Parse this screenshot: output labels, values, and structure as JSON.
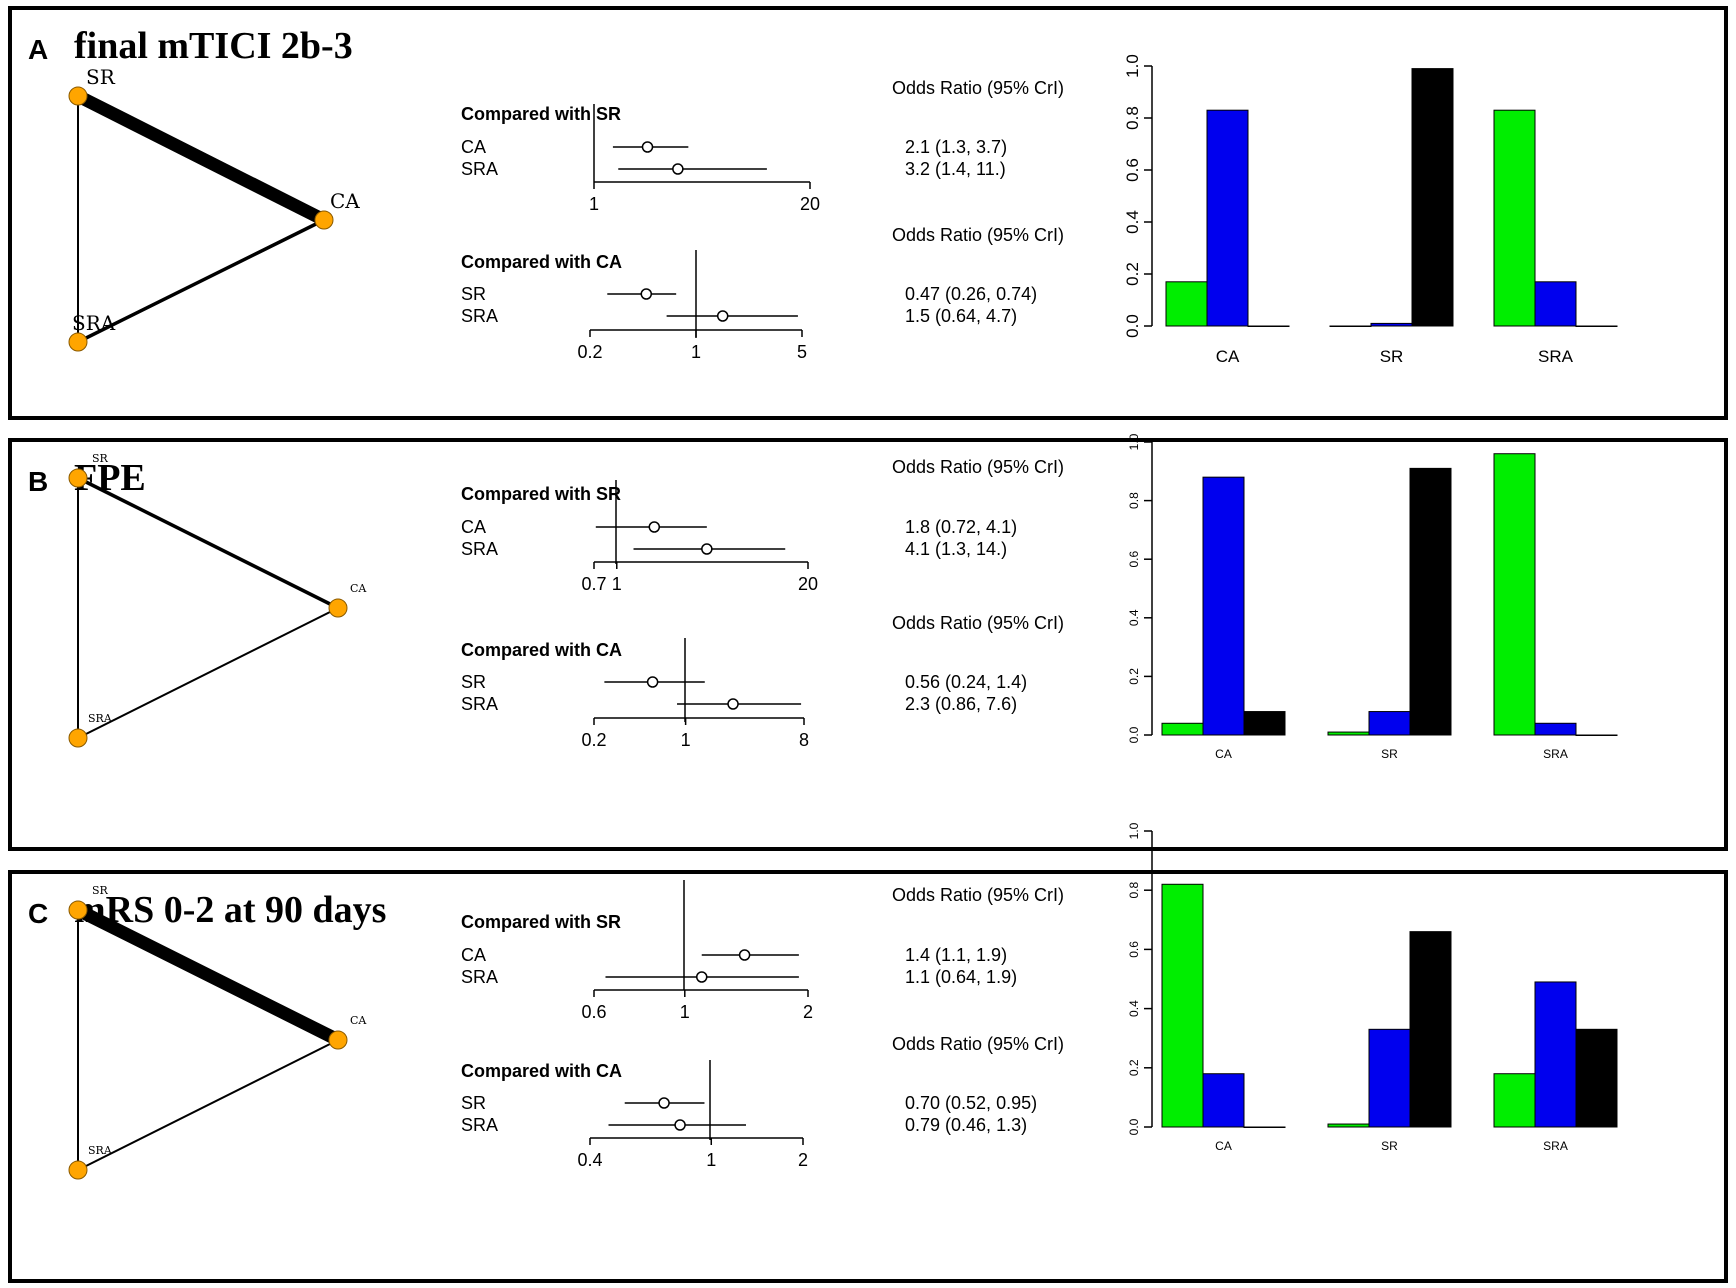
{
  "colors": {
    "green": "#00ee00",
    "blue": "#0000ee",
    "black": "#000000",
    "node": "#ffa500",
    "frame": "#000000"
  },
  "panels": [
    {
      "label": "A",
      "title": "final mTICI 2b-3",
      "network": {
        "nodes": [
          "SR",
          "CA",
          "SRA"
        ],
        "edges": [
          {
            "from": "SR",
            "to": "CA",
            "weight": "thick"
          },
          {
            "from": "SR",
            "to": "SRA",
            "weight": "thin"
          },
          {
            "from": "CA",
            "to": "SRA",
            "weight": "medium"
          }
        ]
      },
      "forest": [
        {
          "header": "Compared with SR",
          "or_label": "Odds Ratio (95% CrI)",
          "ticks": [
            "1",
            "20"
          ],
          "rows": [
            {
              "name": "CA",
              "est": 2.1,
              "lo": 1.3,
              "hi": 3.7,
              "text": "2.1 (1.3, 3.7)"
            },
            {
              "name": "SRA",
              "est": 3.2,
              "lo": 1.4,
              "hi": 11,
              "text": "3.2 (1.4, 11.)"
            }
          ]
        },
        {
          "header": "Compared with CA",
          "or_label": "Odds Ratio (95% CrI)",
          "ticks": [
            "0.2",
            "1",
            "5"
          ],
          "rows": [
            {
              "name": "SR",
              "est": 0.47,
              "lo": 0.26,
              "hi": 0.74,
              "text": "0.47 (0.26, 0.74)"
            },
            {
              "name": "SRA",
              "est": 1.5,
              "lo": 0.64,
              "hi": 4.7,
              "text": "1.5 (0.64, 4.7)"
            }
          ]
        }
      ]
    },
    {
      "label": "B",
      "title": "FPE",
      "network": {
        "nodes": [
          "SR",
          "CA",
          "SRA"
        ],
        "edges": [
          {
            "from": "SR",
            "to": "CA",
            "weight": "medium"
          },
          {
            "from": "SR",
            "to": "SRA",
            "weight": "thin"
          },
          {
            "from": "CA",
            "to": "SRA",
            "weight": "thin"
          }
        ]
      },
      "forest": [
        {
          "header": "Compared with SR",
          "or_label": "Odds Ratio (95% CrI)",
          "ticks": [
            "0.7",
            "1",
            "20"
          ],
          "rows": [
            {
              "name": "CA",
              "est": 1.8,
              "lo": 0.72,
              "hi": 4.1,
              "text": "1.8 (0.72, 4.1)"
            },
            {
              "name": "SRA",
              "est": 4.1,
              "lo": 1.3,
              "hi": 14,
              "text": "4.1 (1.3, 14.)"
            }
          ]
        },
        {
          "header": "Compared with CA",
          "or_label": "Odds Ratio (95% CrI)",
          "ticks": [
            "0.2",
            "1",
            "8"
          ],
          "rows": [
            {
              "name": "SR",
              "est": 0.56,
              "lo": 0.24,
              "hi": 1.4,
              "text": "0.56 (0.24, 1.4)"
            },
            {
              "name": "SRA",
              "est": 2.3,
              "lo": 0.86,
              "hi": 7.6,
              "text": "2.3 (0.86, 7.6)"
            }
          ]
        }
      ]
    },
    {
      "label": "C",
      "title": "mRS 0-2 at 90 days",
      "network": {
        "nodes": [
          "SR",
          "CA",
          "SRA"
        ],
        "edges": [
          {
            "from": "SR",
            "to": "CA",
            "weight": "thick"
          },
          {
            "from": "SR",
            "to": "SRA",
            "weight": "thin"
          },
          {
            "from": "CA",
            "to": "SRA",
            "weight": "thin"
          }
        ]
      },
      "forest": [
        {
          "header": "Compared with SR",
          "or_label": "Odds Ratio (95% CrI)",
          "ticks": [
            "0.6",
            "1",
            "2"
          ],
          "rows": [
            {
              "name": "CA",
              "est": 1.4,
              "lo": 1.1,
              "hi": 1.9,
              "text": "1.4 (1.1, 1.9)"
            },
            {
              "name": "SRA",
              "est": 1.1,
              "lo": 0.64,
              "hi": 1.9,
              "text": "1.1 (0.64, 1.9)"
            }
          ]
        },
        {
          "header": "Compared with CA",
          "or_label": "Odds Ratio (95% CrI)",
          "ticks": [
            "0.4",
            "1",
            "2"
          ],
          "rows": [
            {
              "name": "SR",
              "est": 0.7,
              "lo": 0.52,
              "hi": 0.95,
              "text": "0.70 (0.52, 0.95)"
            },
            {
              "name": "SRA",
              "est": 0.79,
              "lo": 0.46,
              "hi": 1.3,
              "text": "0.79 (0.46, 1.3)"
            }
          ]
        }
      ]
    }
  ],
  "chart_data": [
    {
      "type": "bar",
      "panel": "A",
      "categories": [
        "CA",
        "SR",
        "SRA"
      ],
      "ylim": [
        0,
        1.0
      ],
      "yticks": [
        "0.0",
        "0.2",
        "0.4",
        "0.6",
        "0.8",
        "1.0"
      ],
      "series": [
        {
          "name": "green",
          "values": [
            0.17,
            0.0,
            0.83
          ]
        },
        {
          "name": "blue",
          "values": [
            0.83,
            0.01,
            0.17
          ]
        },
        {
          "name": "black",
          "values": [
            0.0,
            0.99,
            0.0
          ]
        }
      ]
    },
    {
      "type": "bar",
      "panel": "B",
      "categories": [
        "CA",
        "SR",
        "SRA"
      ],
      "ylim": [
        0,
        1.0
      ],
      "yticks": [
        "0.0",
        "0.2",
        "0.4",
        "0.6",
        "0.8",
        "1.0"
      ],
      "series": [
        {
          "name": "green",
          "values": [
            0.04,
            0.01,
            0.96
          ]
        },
        {
          "name": "blue",
          "values": [
            0.88,
            0.08,
            0.04
          ]
        },
        {
          "name": "black",
          "values": [
            0.08,
            0.91,
            0.0
          ]
        }
      ]
    },
    {
      "type": "bar",
      "panel": "C",
      "categories": [
        "CA",
        "SR",
        "SRA"
      ],
      "ylim": [
        0,
        1.0
      ],
      "yticks": [
        "0.0",
        "0.2",
        "0.4",
        "0.6",
        "0.8",
        "1.0"
      ],
      "series": [
        {
          "name": "green",
          "values": [
            0.82,
            0.01,
            0.18
          ]
        },
        {
          "name": "blue",
          "values": [
            0.18,
            0.33,
            0.49
          ]
        },
        {
          "name": "black",
          "values": [
            0.0,
            0.66,
            0.33
          ]
        }
      ]
    }
  ]
}
